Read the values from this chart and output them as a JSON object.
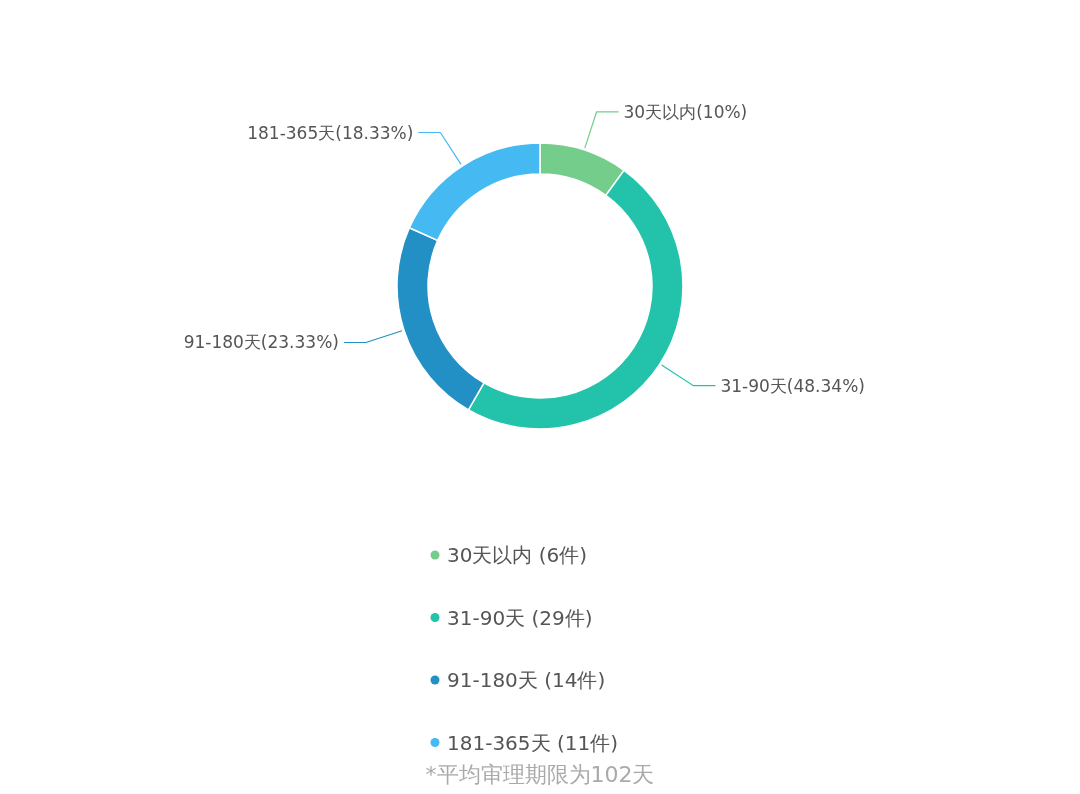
{
  "chart_data": {
    "type": "donut",
    "categories": [
      "30天以内 (6件)",
      "31-90天 (29件)",
      "91-180天 (14件)",
      "181-365天 (11件)"
    ],
    "values": [
      10,
      48.34,
      23.33,
      18.33
    ],
    "value_labels": [
      "30天以内(10%)",
      "31-90天(48.34%)",
      "91-180天(23.33%)",
      "181-365天(18.33%)"
    ],
    "colors": [
      "#74cd8a",
      "#22c3aa",
      "#2290c4",
      "#44b9f2"
    ],
    "legend": "bottom",
    "annotations": [
      "*平均审理期限为102天"
    ]
  }
}
